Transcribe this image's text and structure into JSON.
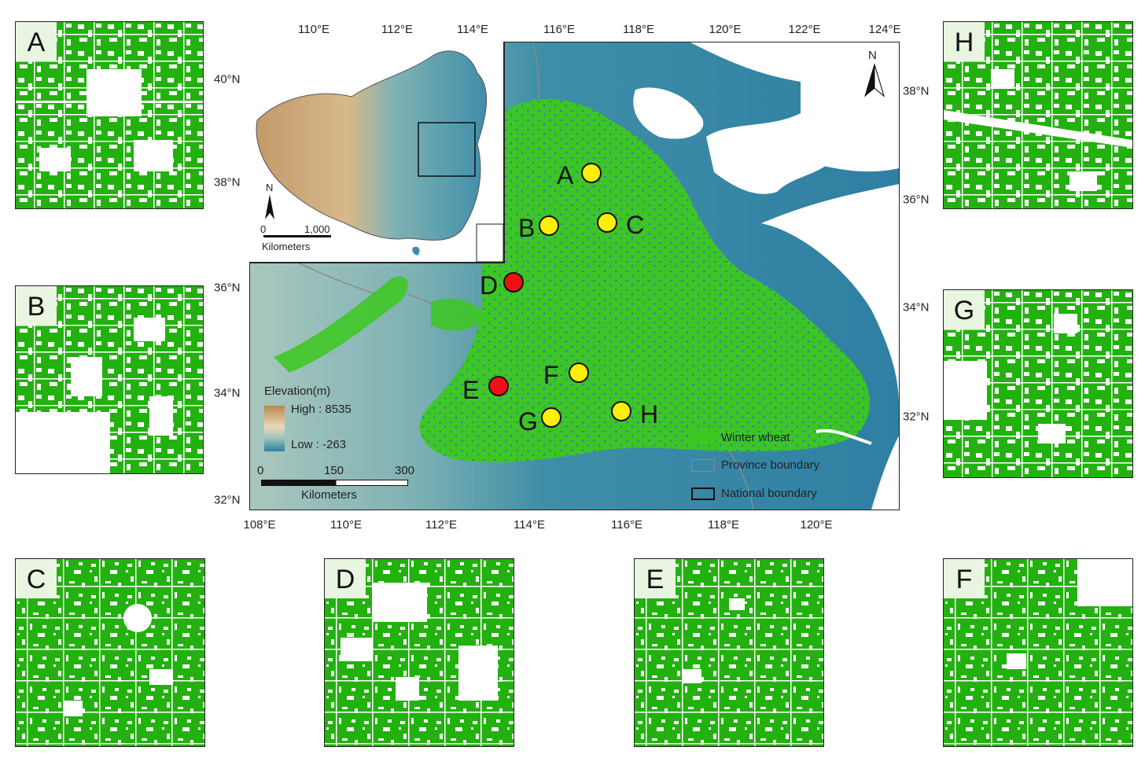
{
  "panels": [
    {
      "id": "A",
      "label": "A"
    },
    {
      "id": "B",
      "label": "B"
    },
    {
      "id": "C",
      "label": "C"
    },
    {
      "id": "D",
      "label": "D"
    },
    {
      "id": "E",
      "label": "E"
    },
    {
      "id": "F",
      "label": "F"
    },
    {
      "id": "G",
      "label": "G"
    },
    {
      "id": "H",
      "label": "H"
    }
  ],
  "map": {
    "top_ticks": [
      "110°E",
      "112°E",
      "114°E",
      "116°E",
      "118°E",
      "120°E",
      "122°E",
      "124°E"
    ],
    "bottom_ticks": [
      "108°E",
      "110°E",
      "112°E",
      "114°E",
      "116°E",
      "118°E",
      "120°E"
    ],
    "left_ticks": [
      "40°N",
      "38°N",
      "36°N",
      "34°N",
      "32°N"
    ],
    "right_ticks": [
      "38°N",
      "36°N",
      "34°N",
      "32°N"
    ],
    "north_label": "N",
    "sites": [
      {
        "label": "A",
        "status": "yellow"
      },
      {
        "label": "B",
        "status": "yellow"
      },
      {
        "label": "C",
        "status": "yellow"
      },
      {
        "label": "D",
        "status": "red"
      },
      {
        "label": "E",
        "status": "red"
      },
      {
        "label": "F",
        "status": "yellow"
      },
      {
        "label": "G",
        "status": "yellow"
      },
      {
        "label": "H",
        "status": "yellow"
      }
    ]
  },
  "inset": {
    "north_label": "N",
    "scale_start": "0",
    "scale_end": "1,000",
    "scale_unit": "Kilometers"
  },
  "elevation_legend": {
    "title": "Elevation(m)",
    "high": "High : 8535",
    "low": "Low : -263"
  },
  "scale_bar": {
    "t0": "0",
    "t1": "150",
    "t2": "300",
    "unit": "Kilometers"
  },
  "legend": {
    "wheat": "Winter wheat",
    "province": "Province boundary",
    "national": "National boundary"
  },
  "colors": {
    "wheat": "#3cc81e",
    "panel_wheat": "#22b10e",
    "lowland": "#3a8aa6",
    "highland": "#a6c6bb",
    "yellow_site": "#ffee0a",
    "red_site": "#ee1111"
  }
}
